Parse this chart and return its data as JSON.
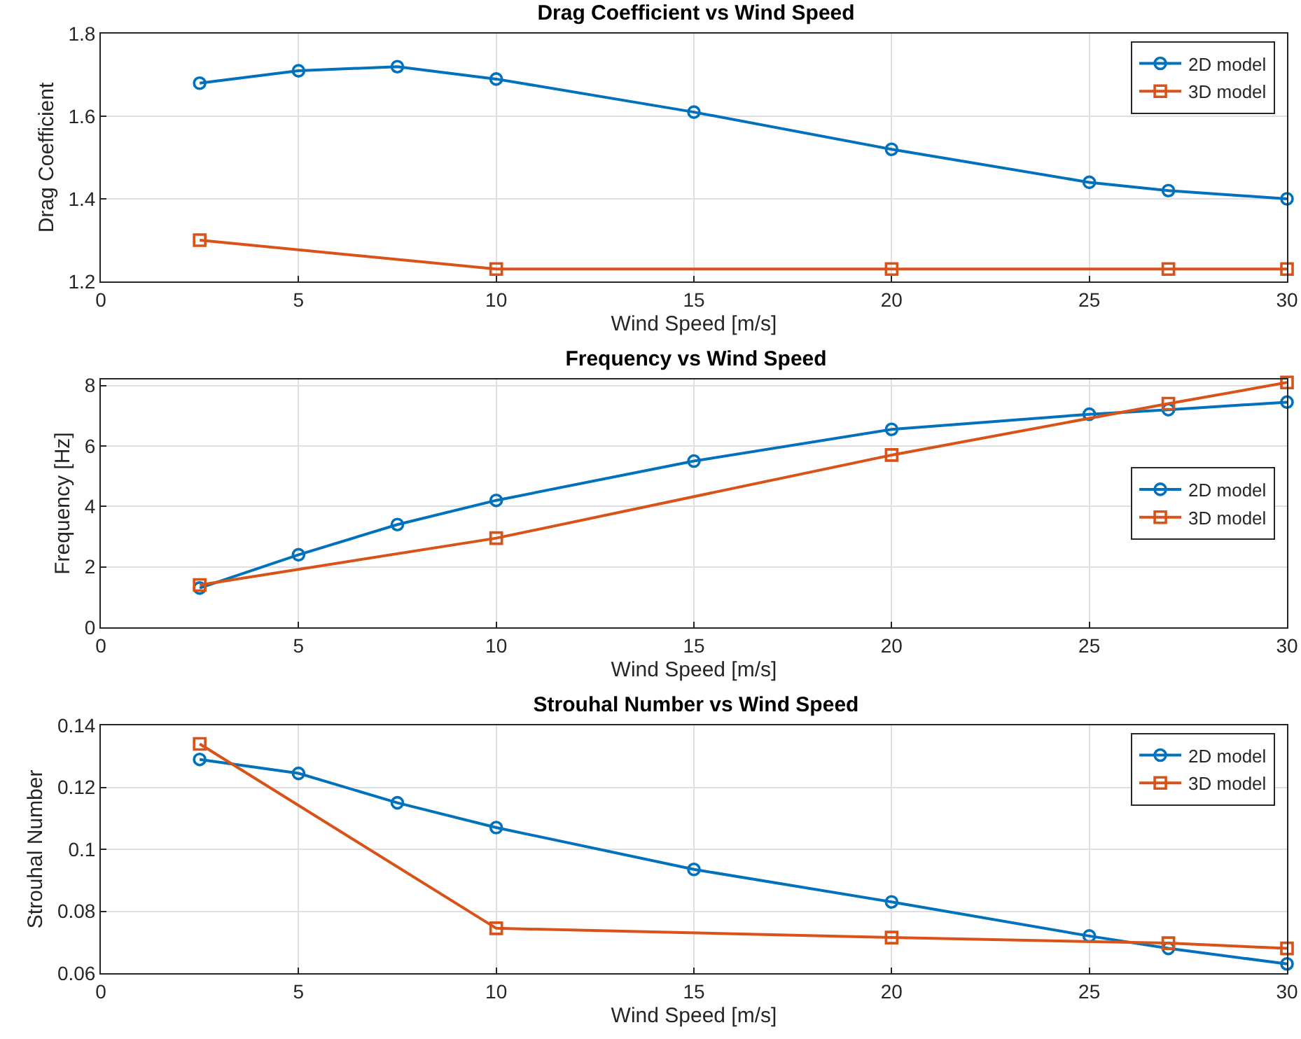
{
  "chart_data": [
    {
      "type": "line",
      "title": "Drag Coefficient vs Wind Speed",
      "xlabel": "Wind Speed [m/s]",
      "ylabel": "Drag Coefficient",
      "xlim": [
        0,
        30
      ],
      "xticks": [
        0,
        5,
        10,
        15,
        20,
        25,
        30
      ],
      "ylim": [
        1.2,
        1.8
      ],
      "yticks": [
        1.2,
        1.4,
        1.6,
        1.8
      ],
      "grid": true,
      "legend": "top right",
      "line_style": "solid",
      "series": [
        {
          "name": "2D model",
          "color": "#0072bd",
          "marker": "circle",
          "x": [
            2.5,
            5,
            7.5,
            10,
            15,
            20,
            25,
            27,
            30
          ],
          "values": [
            1.68,
            1.71,
            1.72,
            1.69,
            1.61,
            1.52,
            1.44,
            1.42,
            1.4
          ]
        },
        {
          "name": "3D model",
          "color": "#d95319",
          "marker": "square",
          "x": [
            2.5,
            10,
            20,
            27,
            30
          ],
          "values": [
            1.3,
            1.23,
            1.23,
            1.23,
            1.23
          ]
        }
      ]
    },
    {
      "type": "line",
      "title": "Frequency vs Wind Speed",
      "xlabel": "Wind Speed [m/s]",
      "ylabel": "Frequency [Hz]",
      "xlim": [
        0,
        30
      ],
      "xticks": [
        0,
        5,
        10,
        15,
        20,
        25,
        30
      ],
      "ylim": [
        0,
        8.2
      ],
      "yticks": [
        0,
        2,
        4,
        6,
        8
      ],
      "grid": true,
      "legend": "right",
      "line_style": "solid",
      "series": [
        {
          "name": "2D model",
          "color": "#0072bd",
          "marker": "circle",
          "x": [
            2.5,
            5,
            7.5,
            10,
            15,
            20,
            25,
            27,
            30
          ],
          "values": [
            1.3,
            2.4,
            3.4,
            4.2,
            5.5,
            6.55,
            7.05,
            7.2,
            7.45
          ]
        },
        {
          "name": "3D model",
          "color": "#d95319",
          "marker": "square",
          "x": [
            2.5,
            10,
            20,
            27,
            30
          ],
          "values": [
            1.4,
            2.95,
            5.7,
            7.4,
            8.1
          ]
        }
      ]
    },
    {
      "type": "line",
      "title": "Strouhal Number vs Wind Speed",
      "xlabel": "Wind Speed [m/s]",
      "ylabel": "Strouhal Number",
      "xlim": [
        0,
        30
      ],
      "xticks": [
        0,
        5,
        10,
        15,
        20,
        25,
        30
      ],
      "ylim": [
        0.06,
        0.14
      ],
      "yticks": [
        0.06,
        0.08,
        {
          "value": 0.1,
          "label": "0.1"
        },
        0.12,
        0.14
      ],
      "grid": true,
      "legend": "top right",
      "line_style": "solid",
      "series": [
        {
          "name": "2D model",
          "color": "#0072bd",
          "marker": "circle",
          "x": [
            2.5,
            5,
            7.5,
            10,
            15,
            20,
            25,
            27,
            30
          ],
          "values": [
            0.129,
            0.1245,
            0.115,
            0.107,
            0.0935,
            0.083,
            0.072,
            0.068,
            0.063
          ]
        },
        {
          "name": "3D model",
          "color": "#d95319",
          "marker": "square",
          "x": [
            2.5,
            10,
            20,
            27,
            30
          ],
          "values": [
            0.134,
            0.0745,
            0.0715,
            0.0697,
            0.068
          ]
        }
      ]
    }
  ]
}
